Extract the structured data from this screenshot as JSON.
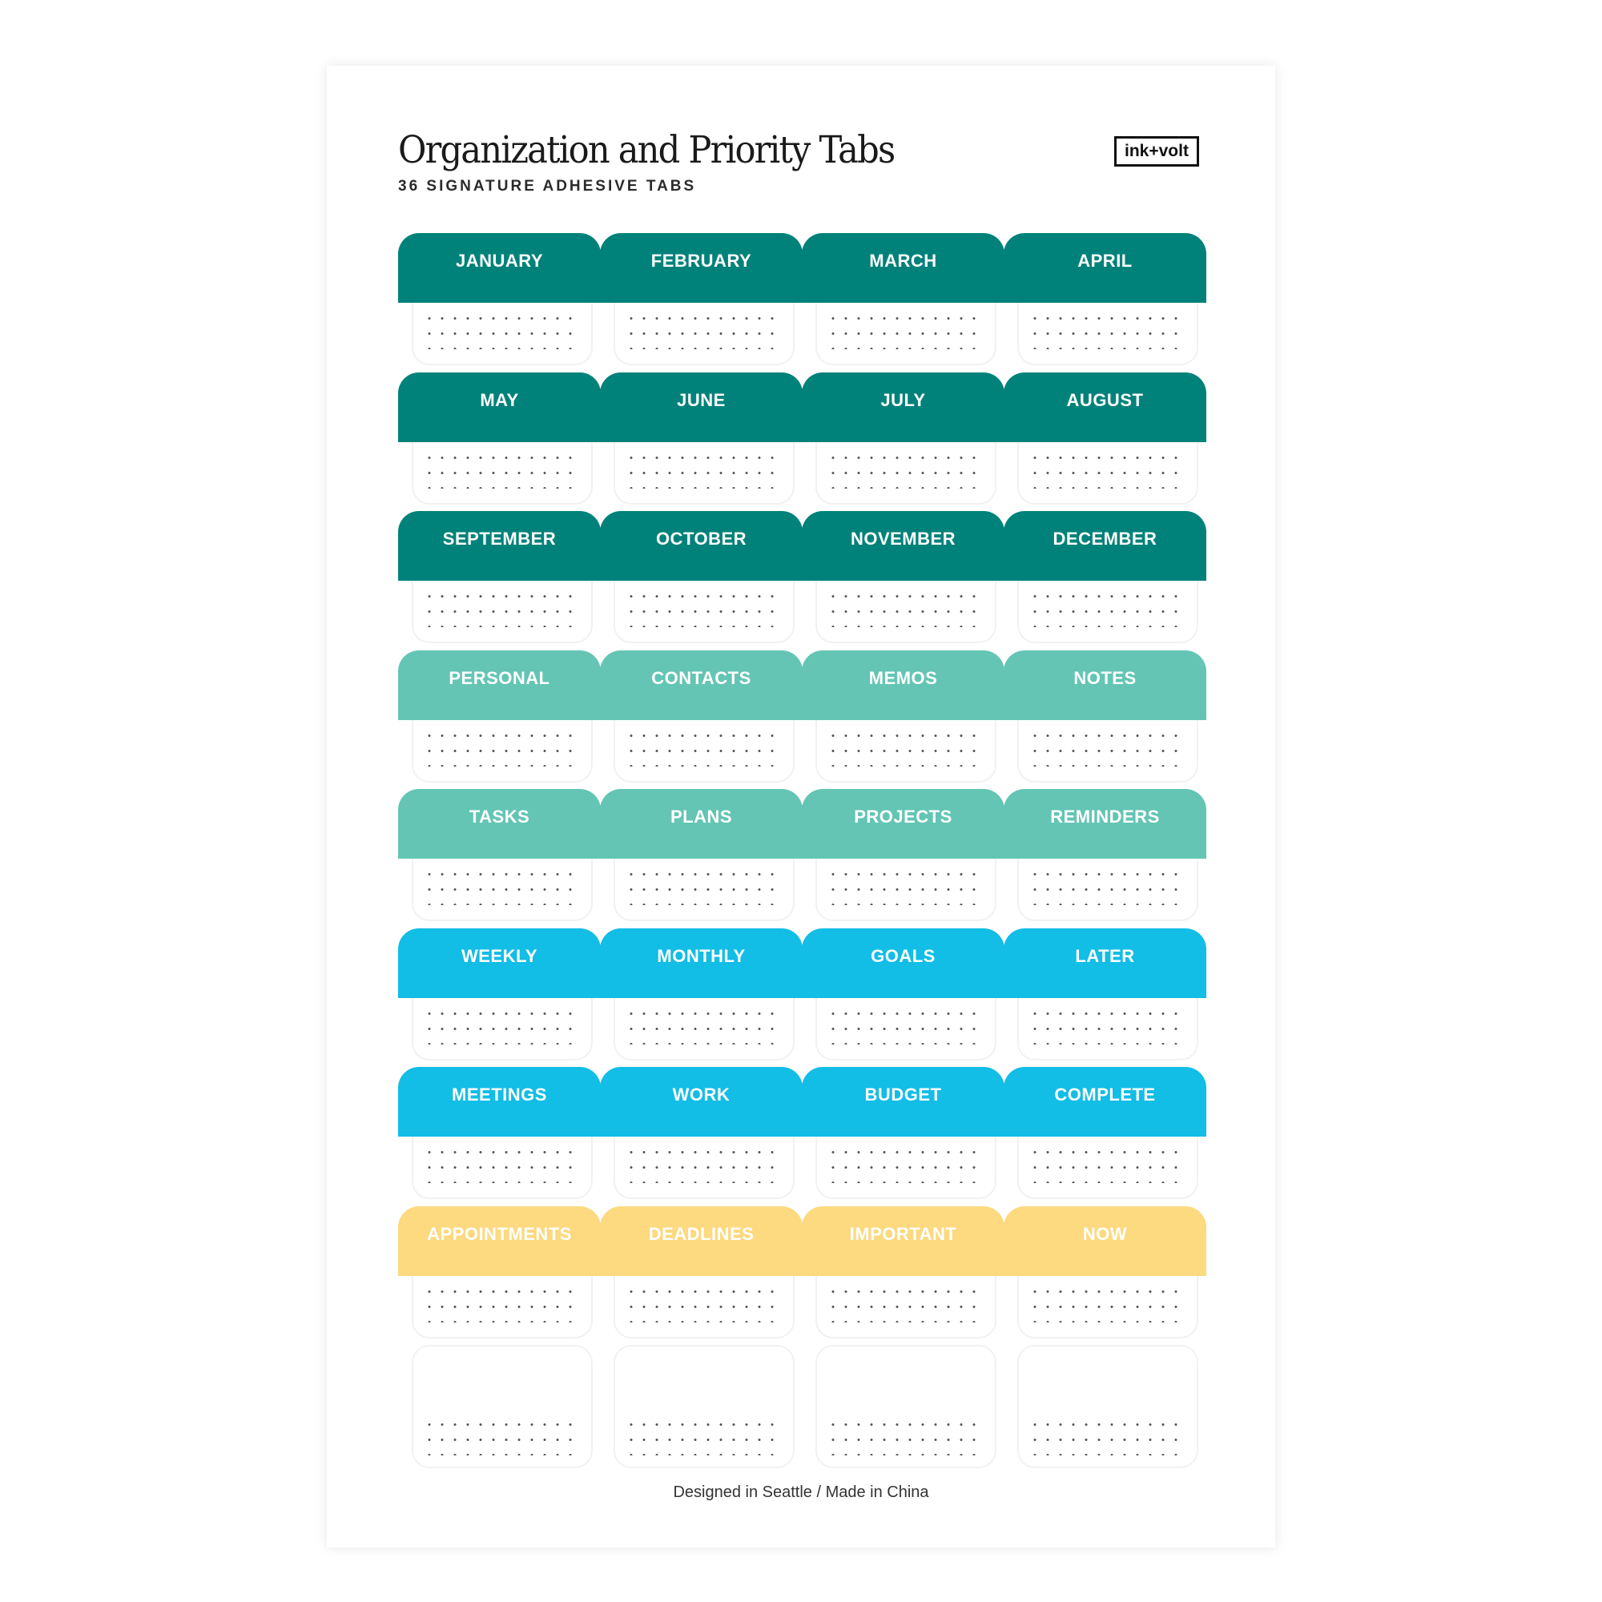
{
  "header": {
    "title": "Organization and Priority Tabs",
    "subtitle": "36 SIGNATURE ADHESIVE TABS",
    "logo": "ink+volt"
  },
  "colors": {
    "dark_teal": "#00827a",
    "light_teal": "#64c5b5",
    "cyan": "#12bde6",
    "yellow": "#fdd97f"
  },
  "rows": [
    {
      "color": "#00827a",
      "labels": [
        "JANUARY",
        "FEBRUARY",
        "MARCH",
        "APRIL"
      ]
    },
    {
      "color": "#00827a",
      "labels": [
        "MAY",
        "JUNE",
        "JULY",
        "AUGUST"
      ]
    },
    {
      "color": "#00827a",
      "labels": [
        "SEPTEMBER",
        "OCTOBER",
        "NOVEMBER",
        "DECEMBER"
      ]
    },
    {
      "color": "#64c5b5",
      "labels": [
        "PERSONAL",
        "CONTACTS",
        "MEMOS",
        "NOTES"
      ]
    },
    {
      "color": "#64c5b5",
      "labels": [
        "TASKS",
        "PLANS",
        "PROJECTS",
        "REMINDERS"
      ]
    },
    {
      "color": "#12bde6",
      "labels": [
        "WEEKLY",
        "MONTHLY",
        "GOALS",
        "LATER"
      ]
    },
    {
      "color": "#12bde6",
      "labels": [
        "MEETINGS",
        "WORK",
        "BUDGET",
        "COMPLETE"
      ]
    },
    {
      "color": "#fdd97f",
      "labels": [
        "APPOINTMENTS",
        "DEADLINES",
        "IMPORTANT",
        "NOW"
      ]
    }
  ],
  "footer": "Designed in Seattle / Made in China"
}
